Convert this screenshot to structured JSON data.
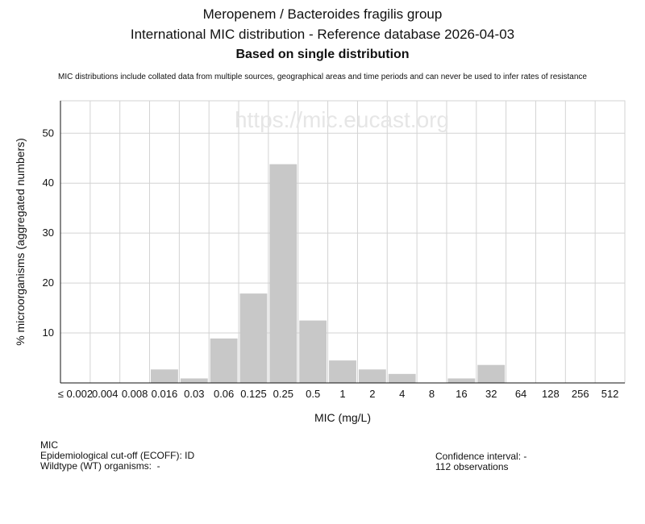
{
  "titles": {
    "line1": "Meropenem / Bacteroides fragilis group",
    "line2": "International MIC distribution - Reference database 2026-04-03",
    "line3": "Based on single distribution"
  },
  "disclaimer": "MIC distributions include collated data from multiple sources, geographical areas and time periods and can never be used to infer rates of resistance",
  "watermark": "https://mic.eucast.org",
  "chart_data": {
    "type": "bar",
    "categories": [
      "≤ 0.002",
      "0.004",
      "0.008",
      "0.016",
      "0.03",
      "0.06",
      "0.125",
      "0.25",
      "0.5",
      "1",
      "2",
      "4",
      "8",
      "16",
      "32",
      "64",
      "128",
      "256",
      "512"
    ],
    "values": [
      0,
      0,
      0,
      2.7,
      0.9,
      8.9,
      17.9,
      43.8,
      12.5,
      4.5,
      2.7,
      1.8,
      0,
      0.9,
      3.6,
      0,
      0,
      0,
      0
    ],
    "xlabel": "MIC (mg/L)",
    "ylabel": "% microorganisms (aggregated numbers)",
    "ylim": [
      0,
      56.5
    ],
    "yticks": [
      10,
      20,
      30,
      40,
      50
    ],
    "grid": true,
    "bar_color": "#c8c8c8",
    "grid_color": "#d3d3d3"
  },
  "info": {
    "mic_label": "MIC",
    "ecoff": "Epidemiological cut-off (ECOFF): ID",
    "wt": "Wildtype (WT) organisms:  -",
    "confidence": "Confidence interval: -",
    "observations": "112 observations"
  }
}
